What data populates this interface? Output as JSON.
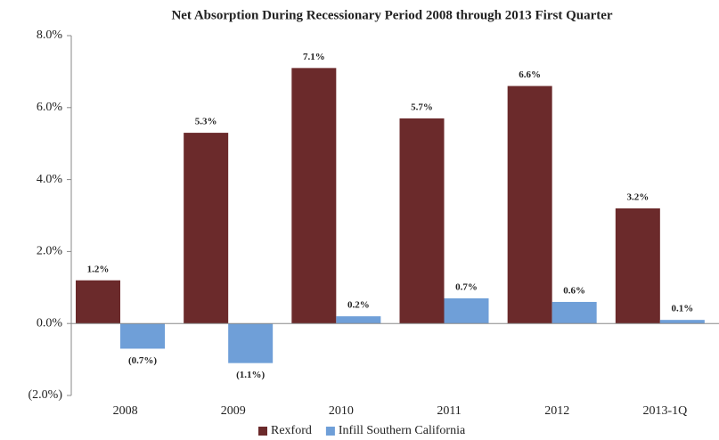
{
  "chart_data": {
    "type": "bar",
    "title": "Net Absorption During Recessionary Period 2008 through 2013 First Quarter",
    "categories": [
      "2008",
      "2009",
      "2010",
      "2011",
      "2012",
      "2013-1Q"
    ],
    "series": [
      {
        "name": "Rexford",
        "color": "#6b2a2b",
        "values": [
          1.2,
          5.3,
          7.1,
          5.7,
          6.6,
          3.2
        ],
        "value_labels": [
          "1.2%",
          "5.3%",
          "7.1%",
          "5.7%",
          "6.6%",
          "3.2%"
        ]
      },
      {
        "name": "Infill Southern California",
        "color": "#6f9fd8",
        "values": [
          -0.7,
          -1.1,
          0.2,
          0.7,
          0.6,
          0.1
        ],
        "value_labels": [
          "(0.7%)",
          "(1.1%)",
          "0.2%",
          "0.7%",
          "0.6%",
          "0.1%"
        ]
      }
    ],
    "ylim": [
      -2,
      8
    ],
    "yticks": [
      {
        "value": -2,
        "label": "(2.0%)"
      },
      {
        "value": 0,
        "label": "0.0%"
      },
      {
        "value": 2,
        "label": "2.0%"
      },
      {
        "value": 4,
        "label": "4.0%"
      },
      {
        "value": 6,
        "label": "6.0%"
      },
      {
        "value": 8,
        "label": "8.0%"
      }
    ],
    "grid": false,
    "legend": "bottom"
  }
}
